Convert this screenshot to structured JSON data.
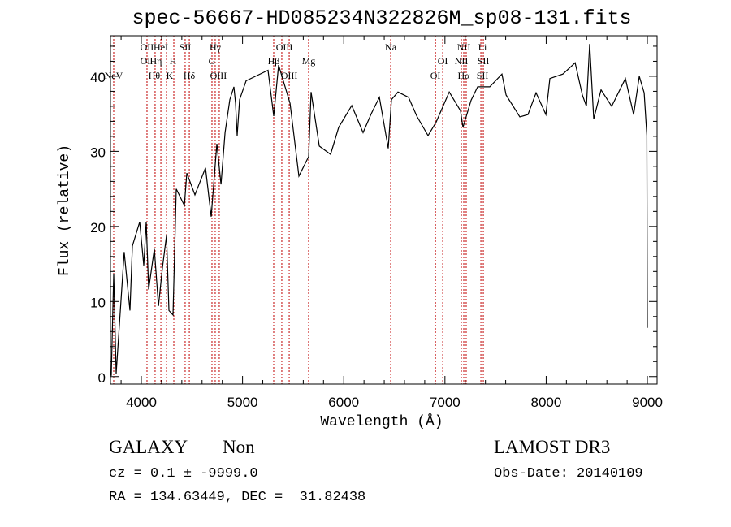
{
  "info": {
    "object_class": "GALAXY",
    "subclass": "Non",
    "survey": "LAMOST DR3",
    "cz_line": "cz = 0.1 ± -9999.0",
    "obs_date": "Obs-Date: 20140109",
    "coords": "RA = 134.63449, DEC =  31.82438"
  },
  "chart_data": {
    "type": "line",
    "title": "spec-56667-HD085234N322826M_sp08-131.fits",
    "xlabel": "Wavelength (Å)",
    "ylabel": "Flux (relative)",
    "xlim": [
      3695,
      9096
    ],
    "ylim": [
      -1,
      45.4
    ],
    "xticks": [
      4000,
      5000,
      6000,
      7000,
      8000,
      9000
    ],
    "xtick_labels": [
      "4000",
      "5000",
      "6000",
      "7000",
      "8000",
      "9000"
    ],
    "yticks": [
      0,
      10,
      20,
      30,
      40
    ],
    "ytick_labels": [
      "0",
      "10",
      "20",
      "30",
      "40"
    ],
    "grid": false,
    "line_color": "#000000",
    "marker_color": "#c00000",
    "series": [
      {
        "name": "spectrum",
        "x": [
          3703,
          3727,
          3751,
          3783,
          3831,
          3888,
          3912,
          3984,
          4024,
          4048,
          4072,
          4128,
          4169,
          4209,
          4249,
          4273,
          4313,
          4345,
          4425,
          4449,
          4530,
          4634,
          4690,
          4746,
          4787,
          4827,
          4875,
          4915,
          4931,
          4947,
          4971,
          5035,
          5252,
          5308,
          5356,
          5469,
          5557,
          5653,
          5677,
          5758,
          5870,
          5950,
          6079,
          6191,
          6271,
          6352,
          6440,
          6472,
          6536,
          6640,
          6721,
          6833,
          6913,
          7042,
          7154,
          7178,
          7258,
          7323,
          7443,
          7563,
          7604,
          7740,
          7820,
          7900,
          7997,
          8037,
          8165,
          8286,
          8358,
          8398,
          8430,
          8470,
          8542,
          8647,
          8783,
          8864,
          8920,
          8968,
          8995,
          9000
        ],
        "y": [
          0.1,
          13.7,
          0.4,
          6.9,
          16.6,
          8.8,
          17.4,
          20.6,
          14.8,
          20.6,
          11.6,
          17.0,
          9.4,
          14.5,
          18.8,
          8.8,
          8.2,
          25.0,
          22.8,
          27.1,
          24.2,
          27.8,
          21.3,
          31.0,
          25.6,
          32.5,
          36.9,
          38.6,
          36.4,
          32.1,
          36.9,
          39.4,
          40.8,
          34.7,
          41.5,
          36.4,
          26.7,
          29.3,
          37.9,
          30.7,
          29.6,
          33.2,
          36.1,
          32.5,
          35.0,
          37.2,
          30.4,
          36.9,
          37.9,
          37.2,
          34.7,
          32.1,
          33.9,
          37.9,
          35.4,
          33.2,
          36.8,
          38.6,
          38.6,
          40.3,
          37.5,
          34.6,
          34.9,
          37.8,
          34.9,
          39.7,
          40.3,
          41.8,
          37.5,
          36.0,
          44.3,
          34.3,
          38.2,
          36.0,
          39.7,
          34.9,
          40.0,
          37.8,
          32.1,
          6.5
        ]
      }
    ],
    "line_markers": [
      3727,
      4056,
      4136,
      4193,
      4249,
      4321,
      4433,
      4474,
      4698,
      4730,
      4770,
      5308,
      5388,
      5461,
      5653,
      6464,
      6906,
      6978,
      7162,
      7186,
      7210,
      7355,
      7379
    ],
    "line_labels": [
      {
        "text": "NeV",
        "wavelength": 3727,
        "row": 3
      },
      {
        "text": "OII",
        "wavelength": 4056,
        "row": 1
      },
      {
        "text": "HeI",
        "wavelength": 4193,
        "row": 1
      },
      {
        "text": "SII",
        "wavelength": 4433,
        "row": 1
      },
      {
        "text": "OI",
        "wavelength": 4040,
        "row": 2
      },
      {
        "text": "Hη",
        "wavelength": 4144,
        "row": 2
      },
      {
        "text": "H",
        "wavelength": 4313,
        "row": 2
      },
      {
        "text": "Hθ",
        "wavelength": 4128,
        "row": 3
      },
      {
        "text": "K",
        "wavelength": 4281,
        "row": 3
      },
      {
        "text": "Hδ",
        "wavelength": 4474,
        "row": 3
      },
      {
        "text": "Hγ",
        "wavelength": 4730,
        "row": 1
      },
      {
        "text": "G",
        "wavelength": 4698,
        "row": 2
      },
      {
        "text": "OIII",
        "wavelength": 4762,
        "row": 3
      },
      {
        "text": "OIII",
        "wavelength": 5413,
        "row": 1
      },
      {
        "text": "Hβ",
        "wavelength": 5308,
        "row": 2
      },
      {
        "text": "OIII",
        "wavelength": 5461,
        "row": 3
      },
      {
        "text": "Mg",
        "wavelength": 5653,
        "row": 2
      },
      {
        "text": "Na",
        "wavelength": 6464,
        "row": 1
      },
      {
        "text": "OI",
        "wavelength": 6978,
        "row": 2
      },
      {
        "text": "OI",
        "wavelength": 6906,
        "row": 3
      },
      {
        "text": "NII",
        "wavelength": 7186,
        "row": 1
      },
      {
        "text": "Li",
        "wavelength": 7371,
        "row": 1
      },
      {
        "text": "NII",
        "wavelength": 7162,
        "row": 2
      },
      {
        "text": "SII",
        "wavelength": 7379,
        "row": 2
      },
      {
        "text": "Hα",
        "wavelength": 7186,
        "row": 3
      },
      {
        "text": "SII",
        "wavelength": 7371,
        "row": 3
      }
    ]
  }
}
